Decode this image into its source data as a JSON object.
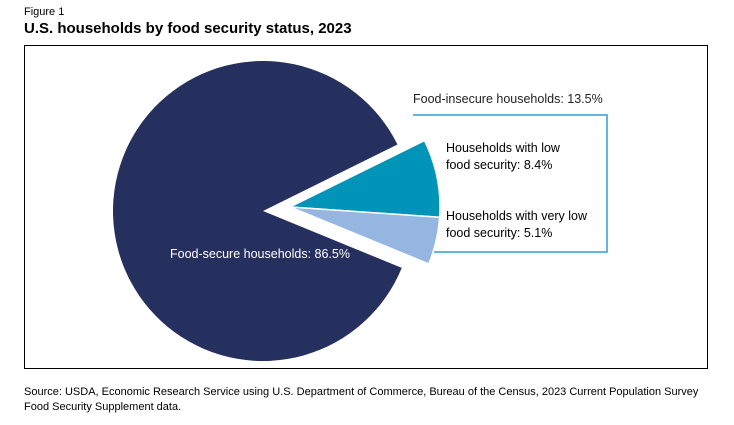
{
  "figure_label": "Figure 1",
  "title": "U.S. households by food security status, 2023",
  "source": "Source: USDA, Economic Research Service using U.S. Department of Commerce, Bureau of the Census, 2023 Current Population Survey Food Security Supplement data.",
  "colors": {
    "secure": "#26305f",
    "low": "#0094b8",
    "very_low": "#94b6e0",
    "bracket": "#2f9fd0"
  },
  "chart_data": {
    "type": "pie",
    "title": "U.S. households by food security status, 2023",
    "slices": [
      {
        "name": "Food-secure households",
        "value": 86.5,
        "label_lines": [
          "Food-secure households: 86.5%"
        ]
      },
      {
        "name": "Households with low food security",
        "value": 8.4,
        "label_lines": [
          "Households with low",
          "food security: 8.4%"
        ]
      },
      {
        "name": "Households with very low food security",
        "value": 5.1,
        "label_lines": [
          "Households with very low",
          "food security: 5.1%"
        ]
      }
    ],
    "group_annotation": "Food-insecure households: 13.5%"
  }
}
